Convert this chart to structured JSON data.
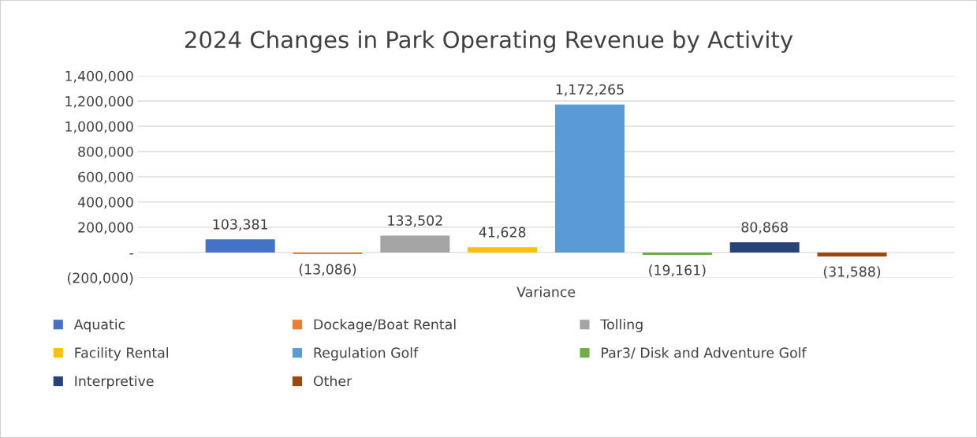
{
  "chart_data": {
    "type": "bar",
    "title": "2024 Changes in Park Operating Revenue by Activity",
    "categories": [
      "Variance"
    ],
    "series": [
      {
        "name": "Aquatic",
        "color": "#4472c4",
        "values": [
          103381
        ],
        "value_labels": [
          "103,381"
        ]
      },
      {
        "name": "Dockage/Boat Rental",
        "color": "#ed7d31",
        "values": [
          -13086
        ],
        "value_labels": [
          "(13,086)"
        ]
      },
      {
        "name": "Tolling",
        "color": "#a5a5a5",
        "values": [
          133502
        ],
        "value_labels": [
          "133,502"
        ]
      },
      {
        "name": "Facility Rental",
        "color": "#ffc000",
        "values": [
          41628
        ],
        "value_labels": [
          "41,628"
        ]
      },
      {
        "name": "Regulation Golf",
        "color": "#5b9bd5",
        "values": [
          1172265
        ],
        "value_labels": [
          "1,172,265"
        ]
      },
      {
        "name": "Par3/ Disk and Adventure Golf",
        "color": "#70ad47",
        "values": [
          -19161
        ],
        "value_labels": [
          "(19,161)"
        ]
      },
      {
        "name": "Interpretive",
        "color": "#264478",
        "values": [
          80868
        ],
        "value_labels": [
          "80,868"
        ]
      },
      {
        "name": "Other",
        "color": "#9e480e",
        "values": [
          -31588
        ],
        "value_labels": [
          "(31,588)"
        ]
      }
    ],
    "ylim": [
      -200000,
      1400000
    ],
    "yticks": [
      {
        "value": -200000,
        "label": "(200,000)"
      },
      {
        "value": 0,
        "label": "-"
      },
      {
        "value": 200000,
        "label": "200,000"
      },
      {
        "value": 400000,
        "label": "400,000"
      },
      {
        "value": 600000,
        "label": "600,000"
      },
      {
        "value": 800000,
        "label": "800,000"
      },
      {
        "value": 1000000,
        "label": "1,000,000"
      },
      {
        "value": 1200000,
        "label": "1,200,000"
      },
      {
        "value": 1400000,
        "label": "1,400,000"
      }
    ],
    "grid": "y",
    "legend": "bottom"
  }
}
